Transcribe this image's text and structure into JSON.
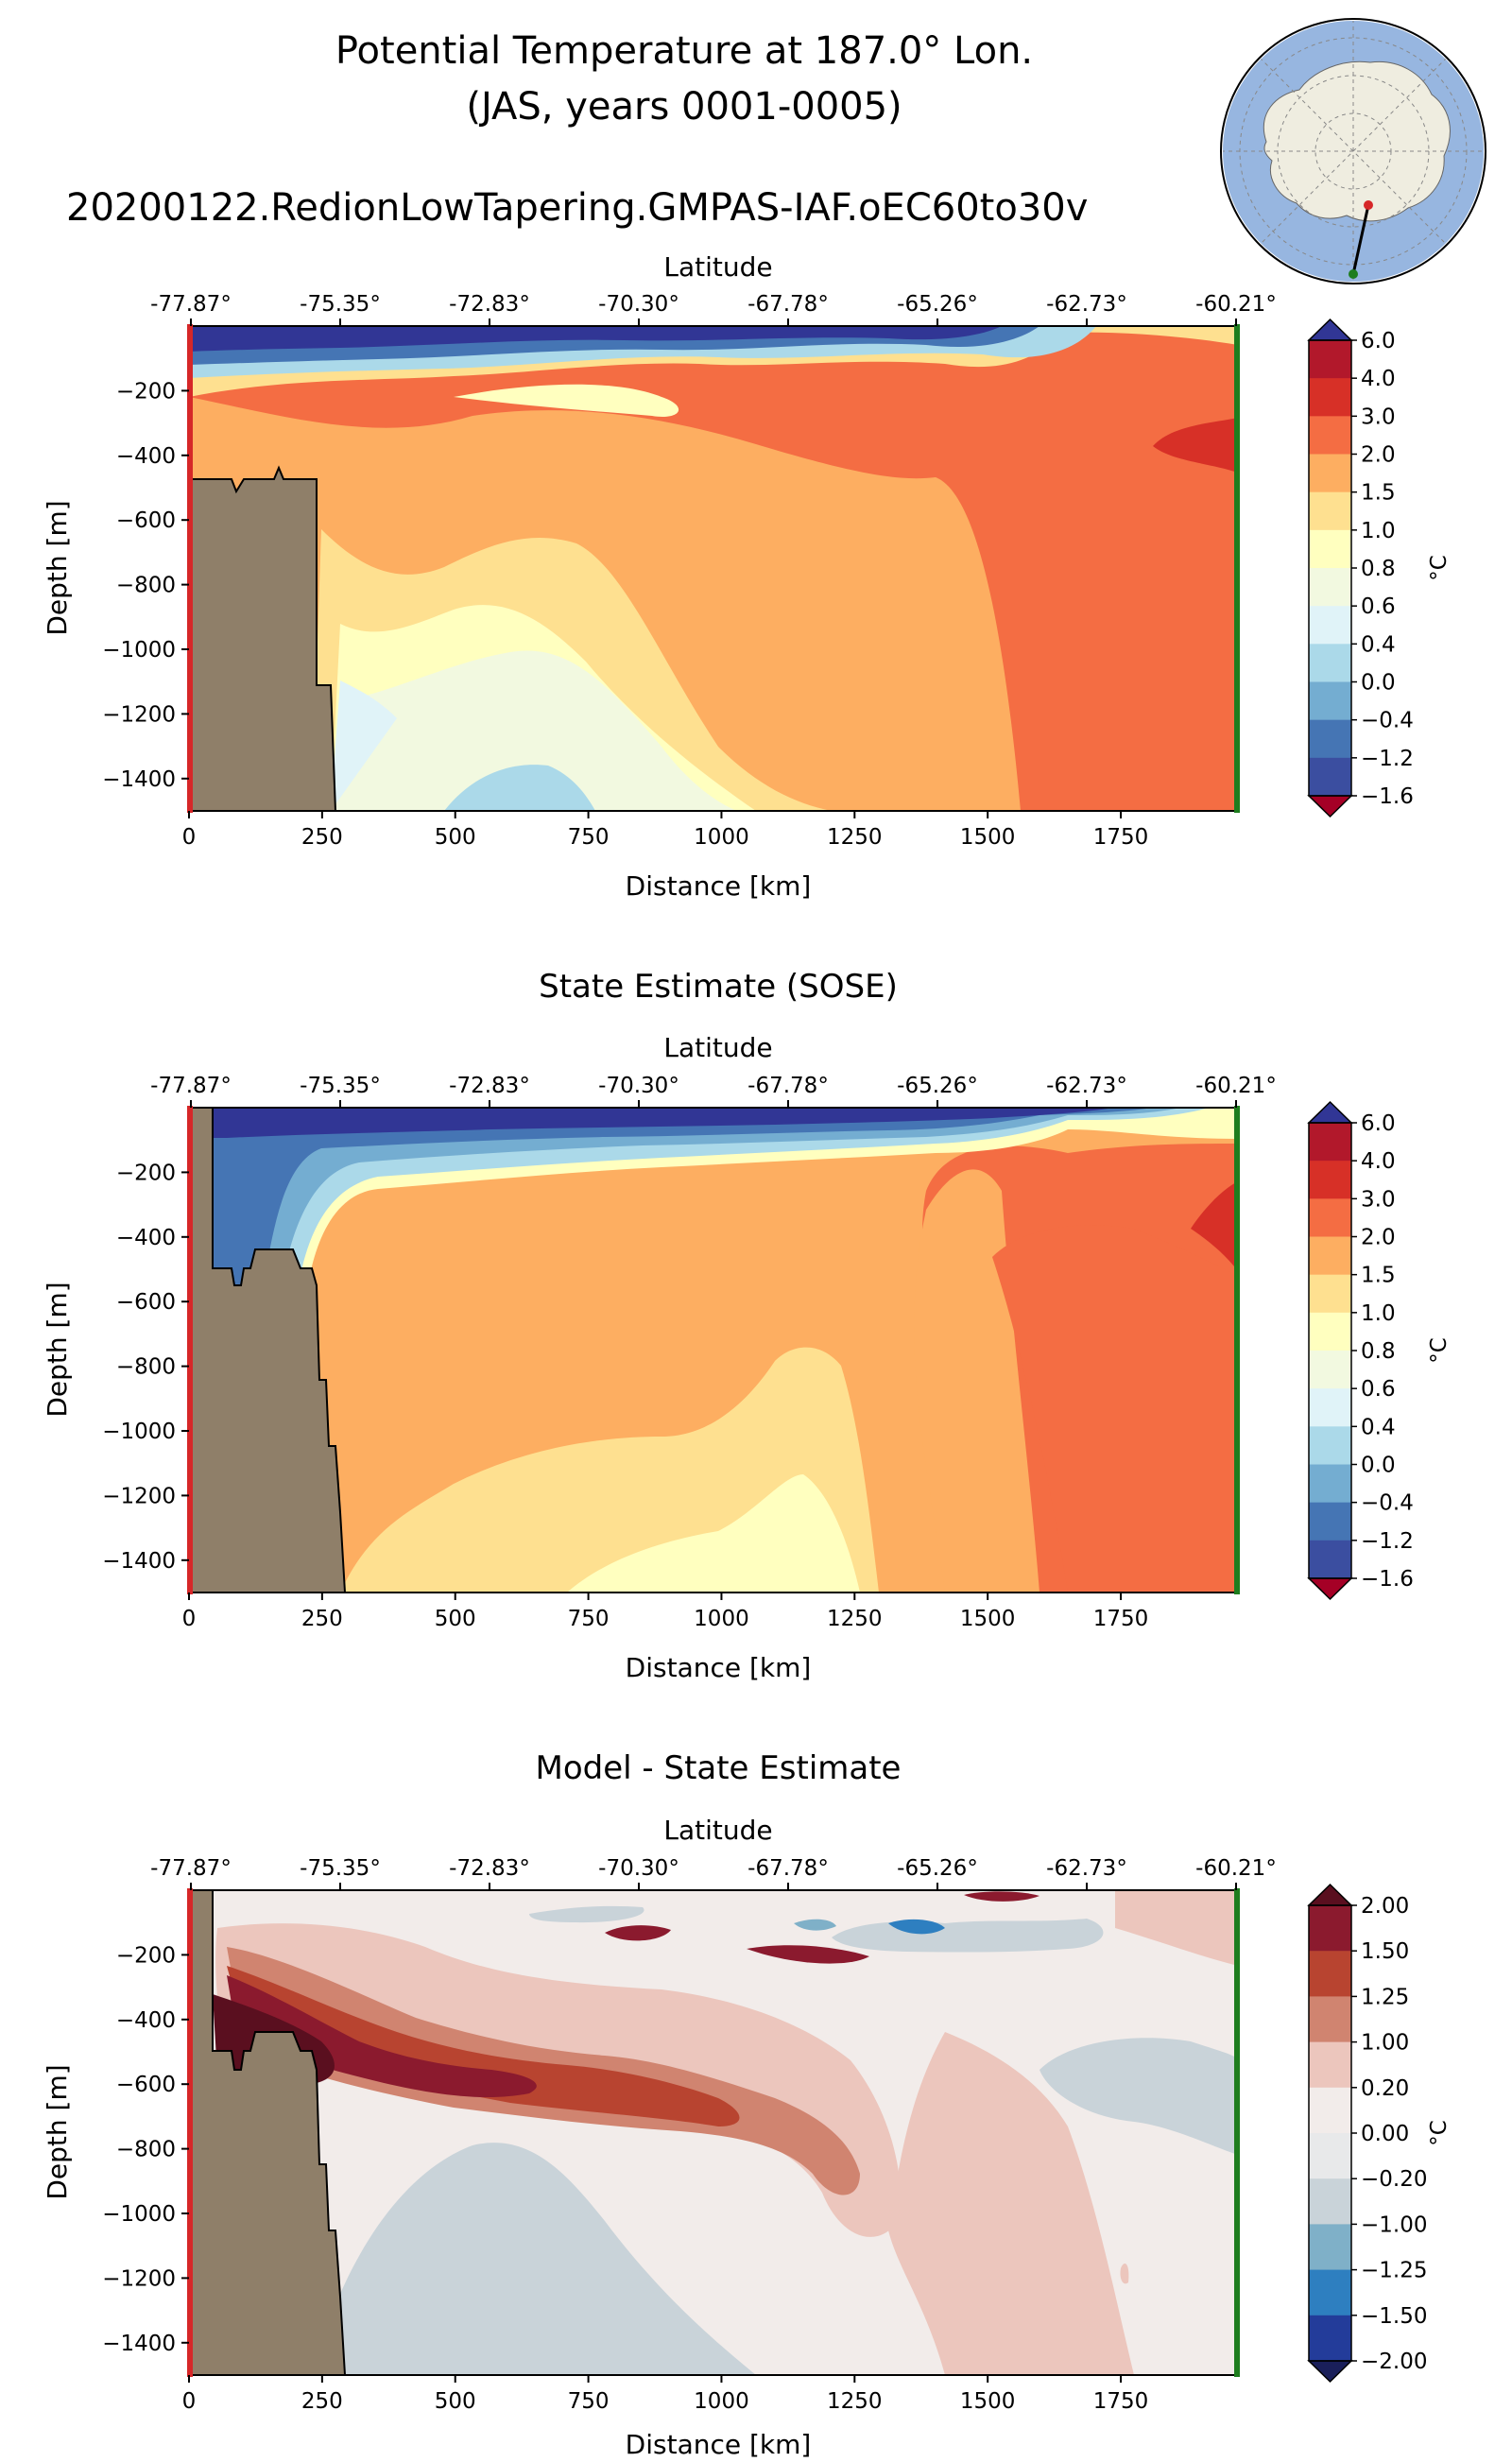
{
  "figure": {
    "title_line1": "Potential Temperature at 187.0° Lon.",
    "title_line2": "(JAS, years 0001-0005)",
    "run_name": "20200122.RedionLowTapering.GMPAS-IAF.oEC60to30v"
  },
  "colors": {
    "land": "#8f7f69",
    "start_marker": "#d62728",
    "end_marker": "#1e7d1e",
    "inset_ocean": "#97b6e0",
    "inset_land": "#efede0"
  },
  "chart_data": [
    {
      "type": "contourf",
      "title": "",
      "xlabel": "Distance [km]",
      "ylabel": "Depth [m]",
      "top_axis_label": "Latitude",
      "xlim": [
        0,
        1970
      ],
      "ylim": [
        -1500,
        0
      ],
      "x_ticks": [
        0,
        250,
        500,
        750,
        1000,
        1250,
        1500,
        1750
      ],
      "y_ticks": [
        -200,
        -400,
        -600,
        -800,
        -1000,
        -1200,
        -1400
      ],
      "lat_ticks": [
        "-77.87°",
        "-75.35°",
        "-72.83°",
        "-70.30°",
        "-67.78°",
        "-65.26°",
        "-62.73°",
        "-60.21°"
      ],
      "colorbar": {
        "label": "°C",
        "levels": [
          "6.0",
          "4.0",
          "3.0",
          "2.0",
          "1.5",
          "1.0",
          "0.8",
          "0.6",
          "0.4",
          "0.0",
          "−0.4",
          "−1.2",
          "−1.6"
        ],
        "colors": [
          "#b2182b",
          "#d73027",
          "#f46d43",
          "#fdae61",
          "#fee090",
          "#ffffbf",
          "#f2f9e0",
          "#e0f3f8",
          "#abd9e9",
          "#74add1",
          "#4575b4",
          "#3b4ea0",
          "#313695",
          "#a50026"
        ]
      }
    },
    {
      "type": "contourf",
      "title": "State Estimate (SOSE)",
      "xlabel": "Distance [km]",
      "ylabel": "Depth [m]",
      "top_axis_label": "Latitude",
      "xlim": [
        0,
        1970
      ],
      "ylim": [
        -1500,
        0
      ],
      "x_ticks": [
        0,
        250,
        500,
        750,
        1000,
        1250,
        1500,
        1750
      ],
      "y_ticks": [
        -200,
        -400,
        -600,
        -800,
        -1000,
        -1200,
        -1400
      ],
      "lat_ticks": [
        "-77.87°",
        "-75.35°",
        "-72.83°",
        "-70.30°",
        "-67.78°",
        "-65.26°",
        "-62.73°",
        "-60.21°"
      ],
      "colorbar": {
        "label": "°C",
        "levels": [
          "6.0",
          "4.0",
          "3.0",
          "2.0",
          "1.5",
          "1.0",
          "0.8",
          "0.6",
          "0.4",
          "0.0",
          "−0.4",
          "−1.2",
          "−1.6"
        ]
      }
    },
    {
      "type": "contourf",
      "title": "Model - State Estimate",
      "xlabel": "Distance [km]",
      "ylabel": "Depth [m]",
      "top_axis_label": "Latitude",
      "xlim": [
        0,
        1970
      ],
      "ylim": [
        -1500,
        0
      ],
      "x_ticks": [
        0,
        250,
        500,
        750,
        1000,
        1250,
        1500,
        1750
      ],
      "y_ticks": [
        -200,
        -400,
        -600,
        -800,
        -1000,
        -1200,
        -1400
      ],
      "lat_ticks": [
        "-77.87°",
        "-75.35°",
        "-72.83°",
        "-70.30°",
        "-67.78°",
        "-65.26°",
        "-62.73°",
        "-60.21°"
      ],
      "colorbar": {
        "label": "°C",
        "levels": [
          "2.00",
          "1.50",
          "1.25",
          "1.00",
          "0.20",
          "0.00",
          "−0.20",
          "−1.00",
          "−1.25",
          "−1.50",
          "−2.00"
        ],
        "colors": [
          "#8b1a2e",
          "#b84430",
          "#d08470",
          "#ecc6bd",
          "#f2ecea",
          "#e8e9ea",
          "#c9d3d9",
          "#7fb0c8",
          "#2e7fc0",
          "#233c9a",
          "#5a0f1f",
          "#1a1f5a"
        ]
      }
    }
  ]
}
